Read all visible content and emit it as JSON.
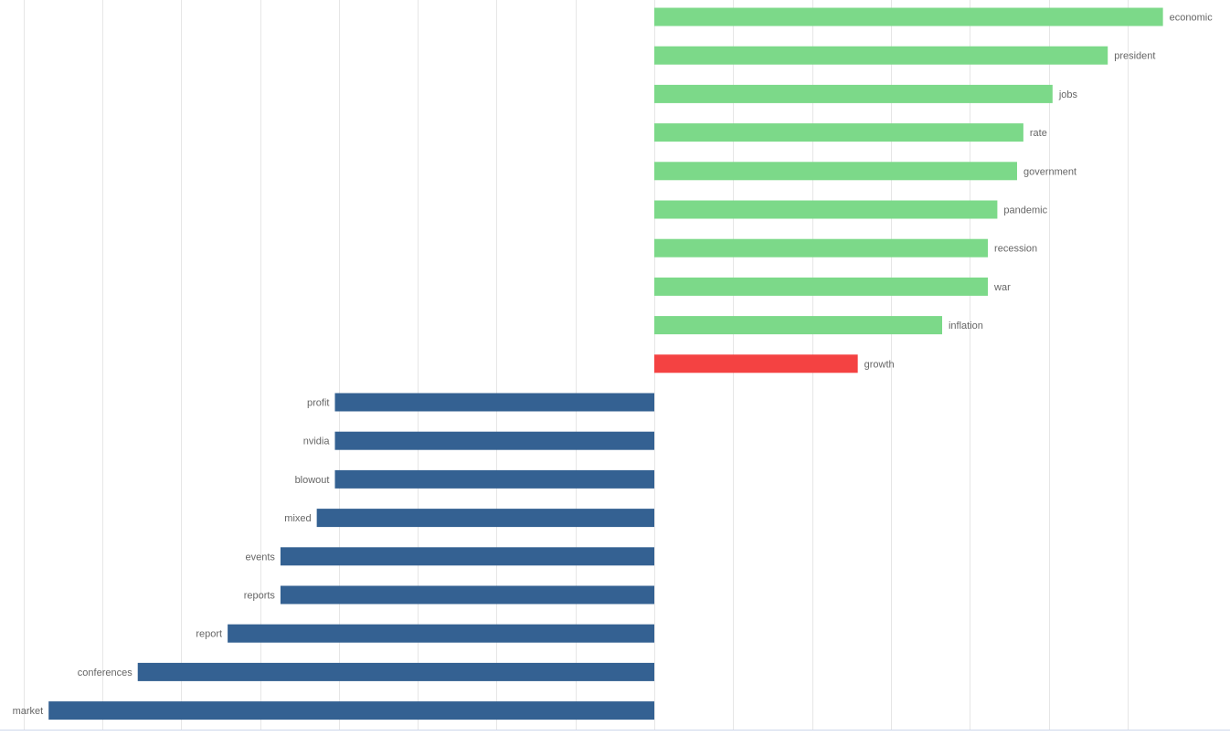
{
  "chart_data": {
    "type": "bar",
    "orientation": "horizontal",
    "title": "",
    "xlabel": "",
    "ylabel": "",
    "xlim": [
      -0.8,
      0.7
    ],
    "grid": true,
    "legend": "none",
    "colors": {
      "positive": "#7cd989",
      "highlight": "#f44242",
      "negative": "#346192"
    },
    "bars": [
      {
        "label": "economic",
        "value": 0.645,
        "color": "positive"
      },
      {
        "label": "president",
        "value": 0.575,
        "color": "positive"
      },
      {
        "label": "jobs",
        "value": 0.505,
        "color": "positive"
      },
      {
        "label": "rate",
        "value": 0.468,
        "color": "positive"
      },
      {
        "label": "government",
        "value": 0.46,
        "color": "positive"
      },
      {
        "label": "pandemic",
        "value": 0.435,
        "color": "positive"
      },
      {
        "label": "recession",
        "value": 0.423,
        "color": "positive"
      },
      {
        "label": "war",
        "value": 0.423,
        "color": "positive"
      },
      {
        "label": "inflation",
        "value": 0.365,
        "color": "positive"
      },
      {
        "label": "growth",
        "value": 0.258,
        "color": "highlight"
      },
      {
        "label": "profit",
        "value": -0.405,
        "color": "negative"
      },
      {
        "label": "nvidia",
        "value": -0.405,
        "color": "negative"
      },
      {
        "label": "blowout",
        "value": -0.405,
        "color": "negative"
      },
      {
        "label": "mixed",
        "value": -0.428,
        "color": "negative"
      },
      {
        "label": "events",
        "value": -0.474,
        "color": "negative"
      },
      {
        "label": "reports",
        "value": -0.474,
        "color": "negative"
      },
      {
        "label": "report",
        "value": -0.541,
        "color": "negative"
      },
      {
        "label": "conferences",
        "value": -0.655,
        "color": "negative"
      },
      {
        "label": "market",
        "value": -0.768,
        "color": "negative"
      }
    ]
  }
}
